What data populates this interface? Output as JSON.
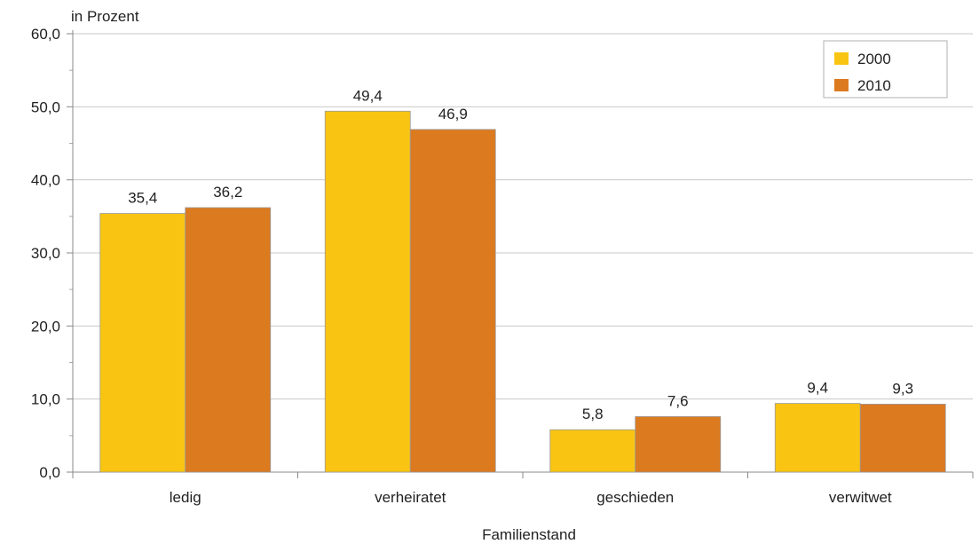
{
  "chart_data": {
    "type": "bar",
    "ylabel": "in Prozent",
    "xlabel": "Familienstand",
    "categories": [
      "ledig",
      "verheiratet",
      "geschieden",
      "verwitwet"
    ],
    "series": [
      {
        "name": "2000",
        "color": "#f9c512",
        "values": [
          35.4,
          49.4,
          5.8,
          9.4
        ],
        "labels": [
          "35,4",
          "49,4",
          "5,8",
          "9,4"
        ]
      },
      {
        "name": "2010",
        "color": "#dc7a1f",
        "values": [
          36.2,
          46.9,
          7.6,
          9.3
        ],
        "labels": [
          "36,2",
          "46,9",
          "7,6",
          "9,3"
        ]
      }
    ],
    "ylim": [
      0,
      60
    ],
    "yticks": [
      0,
      10,
      20,
      30,
      40,
      50,
      60
    ],
    "ytick_labels": [
      "0,0",
      "10,0",
      "20,0",
      "30,0",
      "40,0",
      "50,0",
      "60,0"
    ],
    "grid": true,
    "legend_position": "top-right"
  }
}
